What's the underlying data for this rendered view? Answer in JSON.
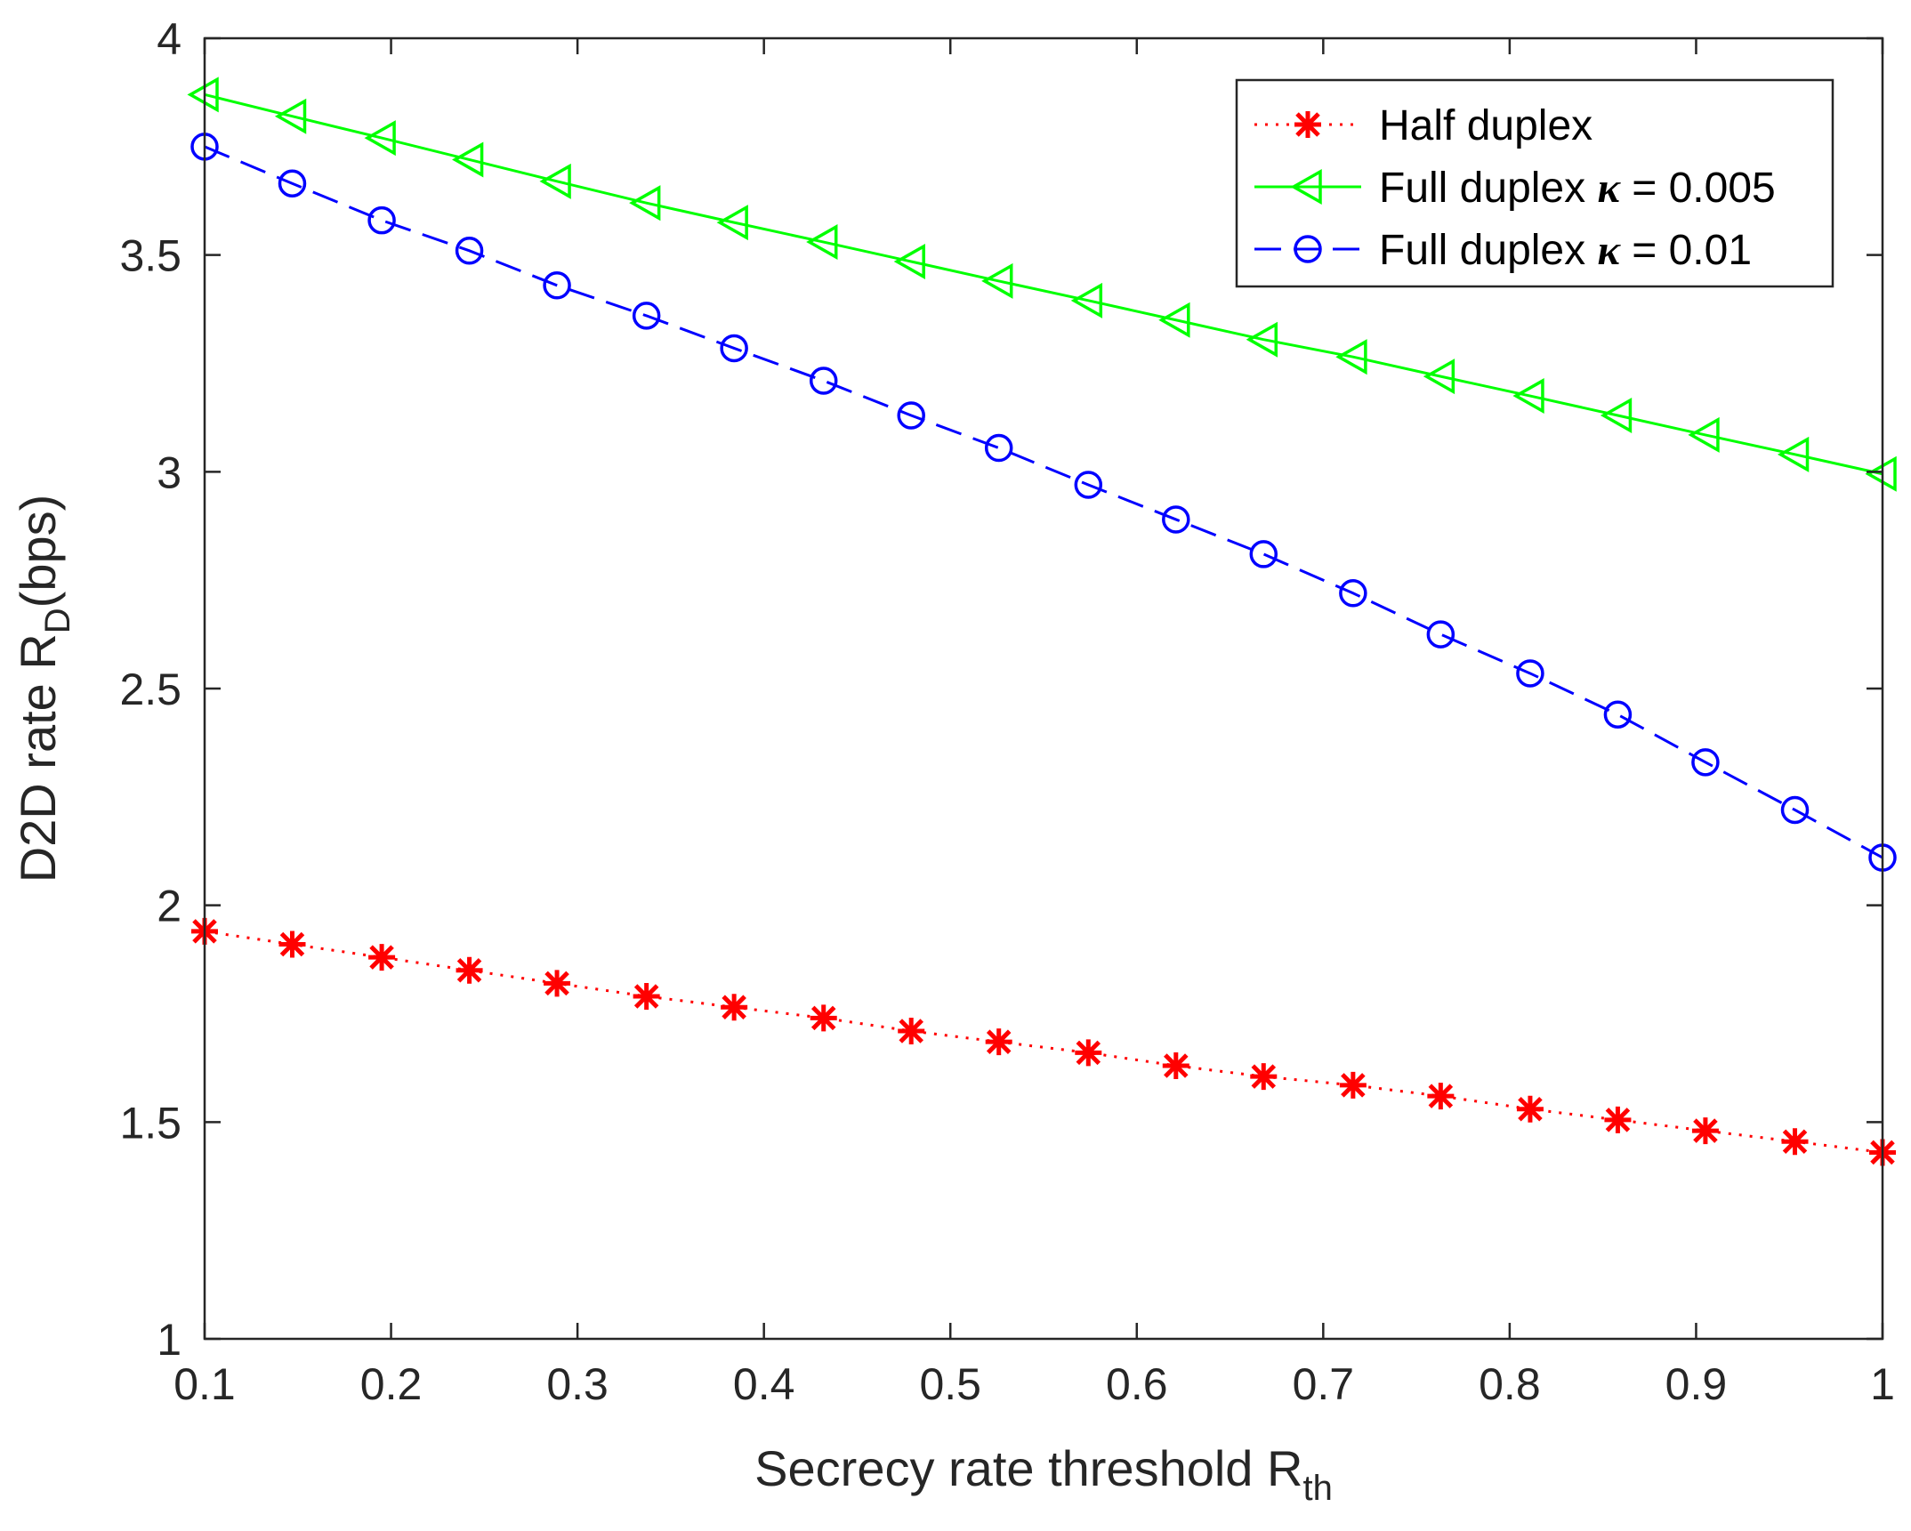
{
  "chart_data": {
    "type": "line",
    "title": "",
    "xlabel": {
      "main": "Secrecy rate threshold R",
      "sub": "th"
    },
    "ylabel": {
      "main": "D2D rate R",
      "sub": "D",
      "suffix": "(bps)"
    },
    "xlim": [
      0.1,
      1
    ],
    "ylim": [
      1,
      4
    ],
    "xticks": [
      0.1,
      0.2,
      0.3,
      0.4,
      0.5,
      0.6,
      0.7,
      0.8,
      0.9,
      1
    ],
    "xtick_labels": [
      "0.1",
      "0.2",
      "0.3",
      "0.4",
      "0.5",
      "0.6",
      "0.7",
      "0.8",
      "0.9",
      "1"
    ],
    "yticks": [
      1,
      1.5,
      2,
      2.5,
      3,
      3.5,
      4
    ],
    "ytick_labels": [
      "1",
      "1.5",
      "2",
      "2.5",
      "3",
      "3.5",
      "4"
    ],
    "grid": false,
    "legend_position": "top-right",
    "x": [
      0.1,
      0.147,
      0.195,
      0.242,
      0.289,
      0.337,
      0.384,
      0.432,
      0.479,
      0.526,
      0.574,
      0.621,
      0.668,
      0.716,
      0.763,
      0.811,
      0.858,
      0.905,
      0.953,
      1.0
    ],
    "series": [
      {
        "name": "Half duplex",
        "legend_main": "Half duplex",
        "legend_kappa": "",
        "legend_value": "",
        "color": "#ff0000",
        "line_style": "dotted",
        "marker": "asterisk",
        "values": [
          1.94,
          1.91,
          1.88,
          1.85,
          1.82,
          1.79,
          1.765,
          1.74,
          1.71,
          1.685,
          1.66,
          1.63,
          1.605,
          1.585,
          1.56,
          1.53,
          1.505,
          1.48,
          1.455,
          1.43
        ]
      },
      {
        "name": "Full duplex κ = 0.005",
        "legend_main": "Full duplex ",
        "legend_kappa": "κ",
        "legend_value": " = 0.005",
        "color": "#00ff00",
        "line_style": "solid",
        "marker": "triangle-left",
        "values": [
          3.87,
          3.82,
          3.77,
          3.72,
          3.67,
          3.62,
          3.575,
          3.53,
          3.485,
          3.44,
          3.395,
          3.35,
          3.305,
          3.265,
          3.22,
          3.175,
          3.13,
          3.085,
          3.04,
          2.995
        ]
      },
      {
        "name": "Full duplex κ = 0.01",
        "legend_main": "Full duplex ",
        "legend_kappa": "κ",
        "legend_value": " = 0.01",
        "color": "#0000ff",
        "line_style": "dashed",
        "marker": "circle",
        "values": [
          3.75,
          3.665,
          3.58,
          3.51,
          3.43,
          3.36,
          3.285,
          3.21,
          3.13,
          3.055,
          2.97,
          2.89,
          2.81,
          2.72,
          2.625,
          2.535,
          2.44,
          2.33,
          2.22,
          2.11
        ]
      }
    ]
  }
}
